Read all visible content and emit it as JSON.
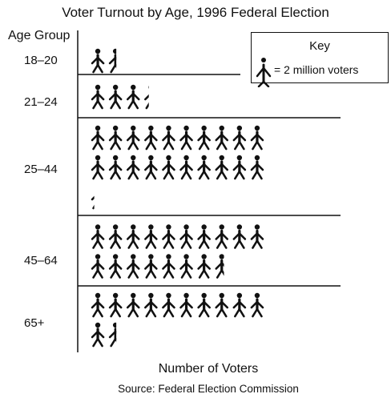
{
  "chart_data": {
    "type": "pictograph",
    "title": "Voter Turnout by Age, 1996 Federal Election",
    "ylabel": "Age Group",
    "xlabel": "Number of Voters",
    "source": "Source: Federal Election Commission",
    "key": {
      "title": "Key",
      "text": "= 2 million voters",
      "voters_per_icon_millions": 2
    },
    "categories": [
      "18–20",
      "21–24",
      "25–44",
      "45–64",
      "65+"
    ],
    "icons": [
      1.5,
      3.3,
      20.2,
      17.6,
      11.5
    ],
    "icons_per_row": 10,
    "values_million_voters": [
      3,
      6.6,
      40.4,
      35.2,
      23
    ],
    "icon_color": "#111111"
  }
}
